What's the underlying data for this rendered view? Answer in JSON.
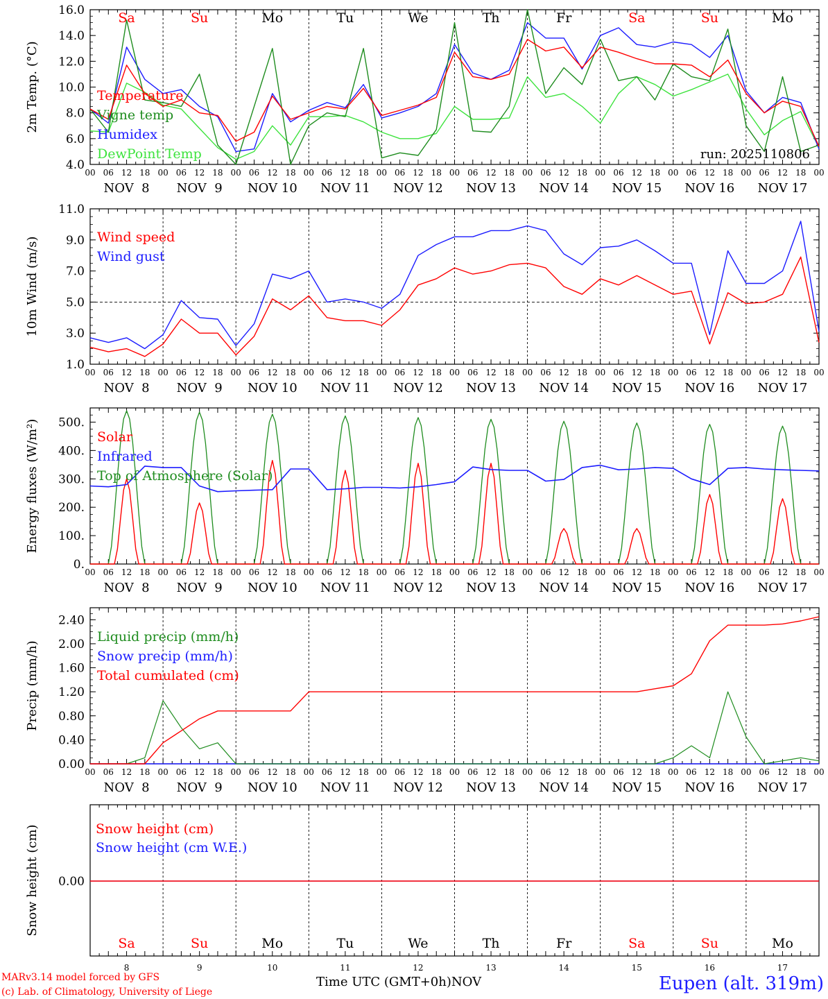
{
  "chart_data": [
    {
      "type": "line",
      "panel": "temperature",
      "ylabel": "2m Temp. (°C)",
      "ylim": [
        4.0,
        16.0
      ],
      "yticks": [
        "4.0",
        "6.0",
        "8.0",
        "10.0",
        "12.0",
        "14.0",
        "16.0"
      ],
      "run_label": "run: 2025110806",
      "x_hours": [
        0,
        6,
        12,
        18,
        24,
        30,
        36,
        42,
        48,
        54,
        60,
        66,
        72,
        78,
        84,
        90,
        96,
        102,
        108,
        114,
        120,
        126,
        132,
        138,
        144,
        150,
        156,
        162,
        168,
        174,
        180,
        186,
        192,
        198,
        204,
        210,
        216,
        222,
        228,
        234,
        240
      ],
      "series": [
        {
          "name": "Temperature",
          "color": "#ff0000",
          "values": [
            8.3,
            7.5,
            11.7,
            9.5,
            8.5,
            9.0,
            8.0,
            7.8,
            5.8,
            6.5,
            9.3,
            7.5,
            8.0,
            8.5,
            8.3,
            9.9,
            7.8,
            8.2,
            8.6,
            9.2,
            12.7,
            10.8,
            10.6,
            11.0,
            13.7,
            12.8,
            13.1,
            11.5,
            13.1,
            12.7,
            12.2,
            11.8,
            11.8,
            11.7,
            10.8,
            12.1,
            9.5,
            8.0,
            8.9,
            8.5,
            5.4
          ]
        },
        {
          "name": "Vigne temp",
          "color": "#1e8c1e",
          "values": [
            8.3,
            6.5,
            15.2,
            9.0,
            8.8,
            8.5,
            11.0,
            5.5,
            4.0,
            8.5,
            13.0,
            4.0,
            7.0,
            8.0,
            7.7,
            13.0,
            4.5,
            4.9,
            4.7,
            6.7,
            15.0,
            6.6,
            6.5,
            8.5,
            16.0,
            9.5,
            11.5,
            10.2,
            13.7,
            10.5,
            10.8,
            9.0,
            11.8,
            10.8,
            10.5,
            14.5,
            7.0,
            5.0,
            10.8,
            5.0,
            5.5
          ]
        },
        {
          "name": "Humidex",
          "color": "#1c1cff",
          "values": [
            8.3,
            7.2,
            13.1,
            10.6,
            9.5,
            9.8,
            8.5,
            7.7,
            5.0,
            5.2,
            9.5,
            7.3,
            8.2,
            8.8,
            8.4,
            10.2,
            7.6,
            8.0,
            8.5,
            9.5,
            13.3,
            11.1,
            10.6,
            11.3,
            15.0,
            13.8,
            13.8,
            11.4,
            14.0,
            14.6,
            13.3,
            13.1,
            13.5,
            13.3,
            12.3,
            14.0,
            9.7,
            8.0,
            9.2,
            8.8,
            5.2
          ]
        },
        {
          "name": "DewPoint Temp",
          "color": "#3de33d",
          "values": [
            6.6,
            6.5,
            10.3,
            9.6,
            8.6,
            8.3,
            6.8,
            5.3,
            4.4,
            5.0,
            7.0,
            5.5,
            7.7,
            7.7,
            7.8,
            7.3,
            6.5,
            6.0,
            6.0,
            6.4,
            8.5,
            7.5,
            7.5,
            7.6,
            10.8,
            9.2,
            9.5,
            8.5,
            7.2,
            9.5,
            10.8,
            10.2,
            9.3,
            9.8,
            10.4,
            11.0,
            8.3,
            6.3,
            7.4,
            8.1,
            5.3
          ]
        }
      ],
      "day_labels": [
        {
          "text": "Sa",
          "color": "#ff0000"
        },
        {
          "text": "Su",
          "color": "#ff0000"
        },
        {
          "text": "Mo",
          "color": "#000000"
        },
        {
          "text": "Tu",
          "color": "#000000"
        },
        {
          "text": "We",
          "color": "#000000"
        },
        {
          "text": "Th",
          "color": "#000000"
        },
        {
          "text": "Fr",
          "color": "#000000"
        },
        {
          "text": "Sa",
          "color": "#ff0000"
        },
        {
          "text": "Su",
          "color": "#ff0000"
        },
        {
          "text": "Mo",
          "color": "#000000"
        }
      ]
    },
    {
      "type": "line",
      "panel": "wind",
      "ylabel": "10m Wind (m/s)",
      "ylim": [
        1.0,
        11.0
      ],
      "yticks": [
        "1.0",
        "3.0",
        "5.0",
        "7.0",
        "9.0",
        "11.0"
      ],
      "reference_line": 5.0,
      "x_hours": [
        0,
        6,
        12,
        18,
        24,
        30,
        36,
        42,
        48,
        54,
        60,
        66,
        72,
        78,
        84,
        90,
        96,
        102,
        108,
        114,
        120,
        126,
        132,
        138,
        144,
        150,
        156,
        162,
        168,
        174,
        180,
        186,
        192,
        198,
        204,
        210,
        216,
        222,
        228,
        234,
        240
      ],
      "series": [
        {
          "name": "Wind speed",
          "color": "#ff0000",
          "values": [
            2.1,
            1.8,
            2.0,
            1.5,
            2.3,
            3.9,
            3.0,
            3.0,
            1.6,
            2.8,
            5.2,
            4.5,
            5.4,
            4.0,
            3.8,
            3.8,
            3.5,
            4.5,
            6.1,
            6.5,
            7.2,
            6.8,
            7.0,
            7.4,
            7.5,
            7.2,
            6.0,
            5.5,
            6.5,
            6.1,
            6.7,
            6.1,
            5.5,
            5.7,
            2.3,
            5.6,
            4.9,
            5.0,
            5.5,
            7.9,
            2.4
          ]
        },
        {
          "name": "Wind gust",
          "color": "#1c1cff",
          "values": [
            2.7,
            2.4,
            2.7,
            2.0,
            2.9,
            5.1,
            4.0,
            3.9,
            2.2,
            3.6,
            6.8,
            6.5,
            7.0,
            5.0,
            5.2,
            5.0,
            4.6,
            5.5,
            8.0,
            8.7,
            9.2,
            9.2,
            9.6,
            9.6,
            9.9,
            9.6,
            8.1,
            7.4,
            8.5,
            8.6,
            9.0,
            8.3,
            7.5,
            7.5,
            2.9,
            8.3,
            6.2,
            6.2,
            7.0,
            10.2,
            3.1
          ]
        }
      ]
    },
    {
      "type": "line",
      "panel": "energy",
      "ylabel": "Energy fluxes (W/m²)",
      "ylim": [
        0,
        550
      ],
      "yticks": [
        "0.",
        "100.",
        "200.",
        "300.",
        "400.",
        "500."
      ],
      "series": [
        {
          "name": "Solar",
          "color": "#ff0000",
          "day_peaks": [
            300,
            215,
            365,
            330,
            355,
            355,
            125,
            125,
            245,
            230
          ]
        },
        {
          "name": "Infrared",
          "color": "#1c1cff",
          "values": [
            275,
            272,
            280,
            345,
            340,
            340,
            275,
            255,
            258,
            260,
            262,
            335,
            335,
            262,
            265,
            270,
            270,
            268,
            272,
            280,
            290,
            342,
            333,
            330,
            330,
            292,
            298,
            340,
            348,
            332,
            335,
            340,
            337,
            300,
            280,
            337,
            340,
            335,
            332,
            330,
            328
          ]
        },
        {
          "name": "Top of Atmosphere (Solar)",
          "color": "#1e8c1e",
          "day_peaks": [
            540,
            535,
            528,
            522,
            516,
            510,
            503,
            497,
            492,
            486
          ]
        }
      ]
    },
    {
      "type": "line",
      "panel": "precip",
      "ylabel": "Precip (mm/h)",
      "ylim": [
        0,
        2.6
      ],
      "yticks": [
        "0.00",
        "0.40",
        "0.80",
        "1.20",
        "1.60",
        "2.00",
        "2.40"
      ],
      "series": [
        {
          "name": "Liquid precip (mm/h)",
          "color": "#1e8c1e",
          "values": [
            0,
            0,
            0,
            0.1,
            1.05,
            0.6,
            0.25,
            0.35,
            0,
            0,
            0,
            0,
            0,
            0,
            0,
            0,
            0,
            0,
            0,
            0,
            0,
            0,
            0,
            0,
            0,
            0,
            0,
            0,
            0,
            0,
            0,
            0,
            0.1,
            0.3,
            0.1,
            1.2,
            0.45,
            0,
            0.05,
            0.1,
            0.05
          ]
        },
        {
          "name": "Snow precip (mm/h)",
          "color": "#1c1cff",
          "values": [
            0,
            0,
            0,
            0,
            0,
            0,
            0,
            0,
            0,
            0,
            0,
            0,
            0,
            0,
            0,
            0,
            0,
            0,
            0,
            0,
            0,
            0,
            0,
            0,
            0,
            0,
            0,
            0,
            0,
            0,
            0,
            0,
            0,
            0,
            0,
            0,
            0,
            0,
            0,
            0,
            0
          ]
        },
        {
          "name": "Total cumulated (cm)",
          "color": "#ff0000",
          "values": [
            0,
            0,
            0,
            0,
            0.35,
            0.55,
            0.75,
            0.88,
            0.88,
            0.88,
            0.88,
            0.88,
            1.2,
            1.2,
            1.2,
            1.2,
            1.2,
            1.2,
            1.2,
            1.2,
            1.2,
            1.2,
            1.2,
            1.2,
            1.2,
            1.2,
            1.2,
            1.2,
            1.2,
            1.2,
            1.2,
            1.25,
            1.3,
            1.5,
            2.05,
            2.31,
            2.31,
            2.31,
            2.33,
            2.38,
            2.45
          ]
        }
      ]
    },
    {
      "type": "line",
      "panel": "snow",
      "ylabel": "Snow height (cm)",
      "yticks": [
        "0.00"
      ],
      "series": [
        {
          "name": "Snow height (cm)",
          "color": "#ff0000",
          "values": [
            0,
            0
          ]
        },
        {
          "name": "Snow height (cm W.E.)",
          "color": "#1c1cff",
          "values": [
            0,
            0
          ]
        }
      ]
    }
  ],
  "x_axis": {
    "hour_labels": [
      "00",
      "06",
      "12",
      "18"
    ],
    "end_label": "00",
    "date_labels": [
      "NOV  8",
      "NOV  9",
      "NOV 10",
      "NOV 11",
      "NOV 12",
      "NOV 13",
      "NOV 14",
      "NOV 15",
      "NOV 16",
      "NOV 17"
    ],
    "bottom_day_numbers": [
      "8",
      "9",
      "10",
      "11",
      "12",
      "13",
      "14",
      "15",
      "16",
      "17"
    ],
    "xlabel": "Time UTC (GMT+0h)",
    "month": "NOV"
  },
  "credits": {
    "model": "MARv3.14 model forced by GFS",
    "lab": "(c) Lab. of Climatology, University of Liege"
  },
  "location": "Eupen (alt. 319m)"
}
